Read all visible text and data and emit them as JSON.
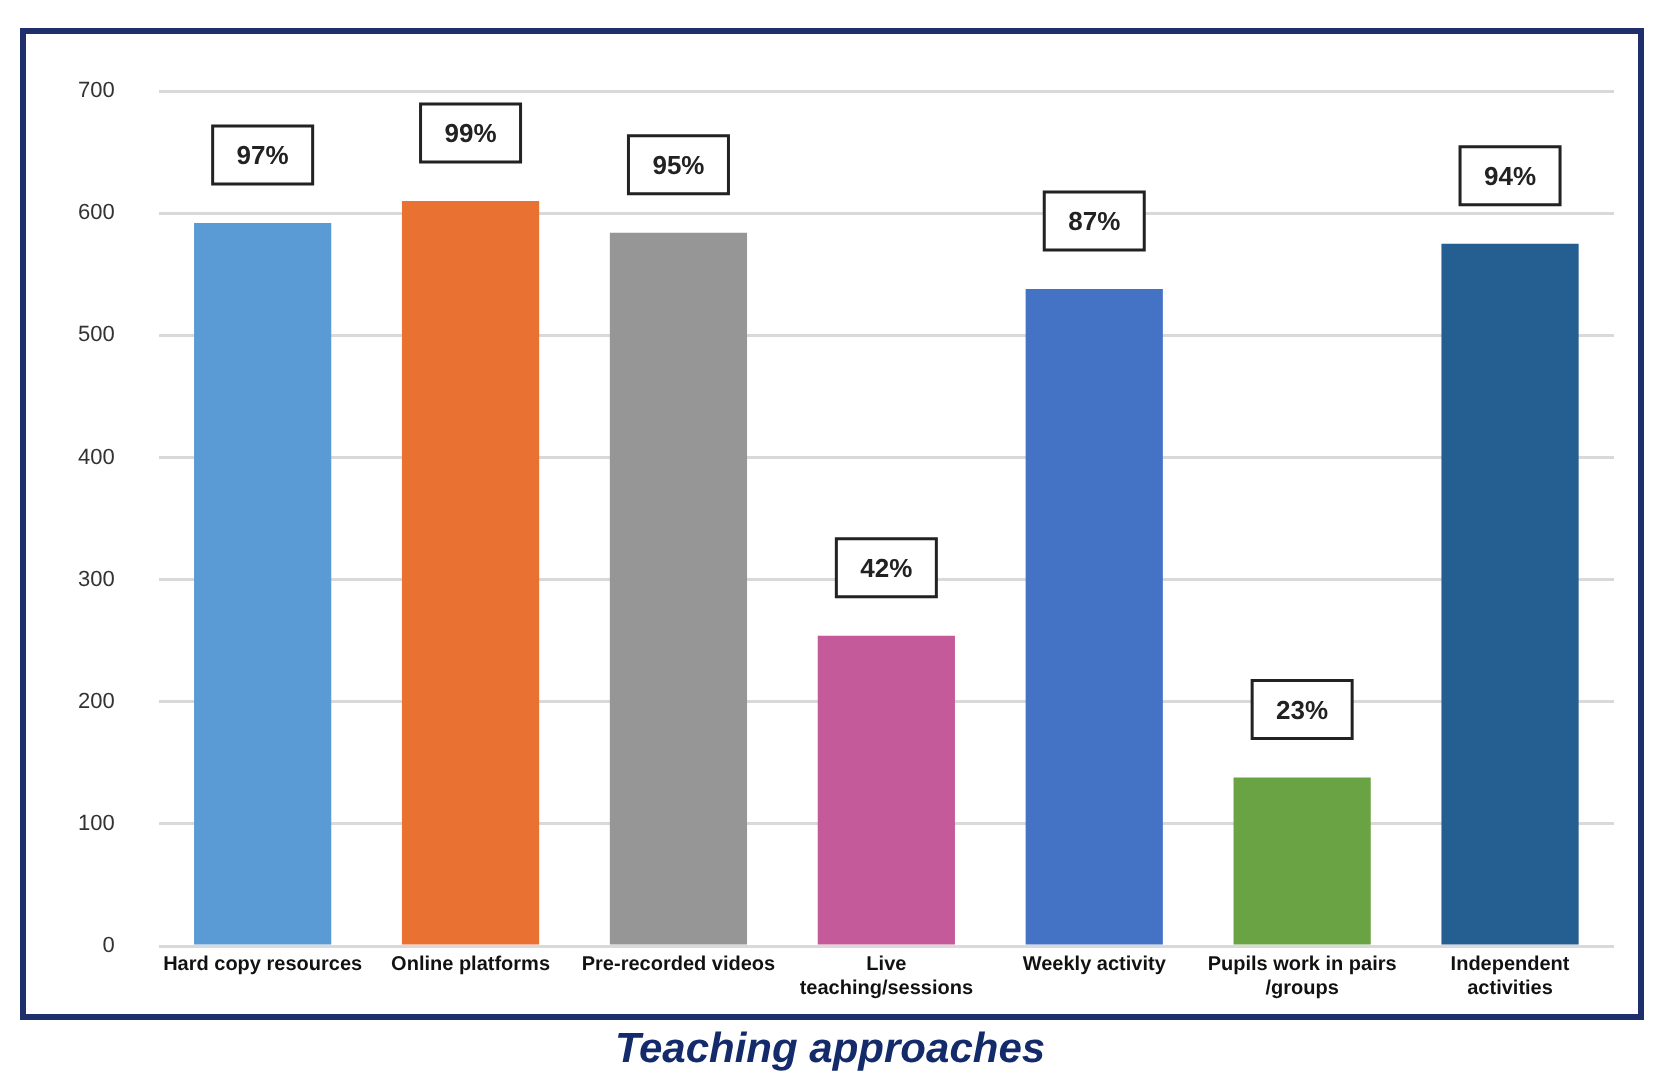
{
  "chart_data": {
    "type": "bar",
    "title": "Teaching approaches",
    "categories": [
      "Hard copy resources",
      "Online platforms",
      "Pre-recorded videos",
      "Live teaching/sessions",
      "Weekly activity",
      "Pupils work in pairs /groups",
      "Independent activities"
    ],
    "values": [
      592,
      610,
      584,
      254,
      538,
      138,
      575
    ],
    "colors": [
      "#5b9bd5",
      "#e97132",
      "#969696",
      "#c55a9a",
      "#4472c4",
      "#6aa343",
      "#255e91"
    ],
    "annotations": [
      {
        "text": "97%",
        "x": "Hard copy resources",
        "y": 592
      },
      {
        "text": "99%",
        "x": "Online platforms",
        "y": 610
      },
      {
        "text": "95%",
        "x": "Pre-recorded videos",
        "y": 584
      },
      {
        "text": "42%",
        "x": "Live teaching/sessions",
        "y": 254
      },
      {
        "text": "87%",
        "x": "Weekly activity",
        "y": 538
      },
      {
        "text": "23%",
        "x": "Pupils work in pairs /groups",
        "y": 138
      },
      {
        "text": "94%",
        "x": "Independent activities",
        "y": 575
      }
    ],
    "ylim": [
      0,
      700
    ],
    "yticks": [
      0,
      100,
      200,
      300,
      400,
      500,
      600,
      700
    ],
    "grid": "y",
    "legend": false
  }
}
